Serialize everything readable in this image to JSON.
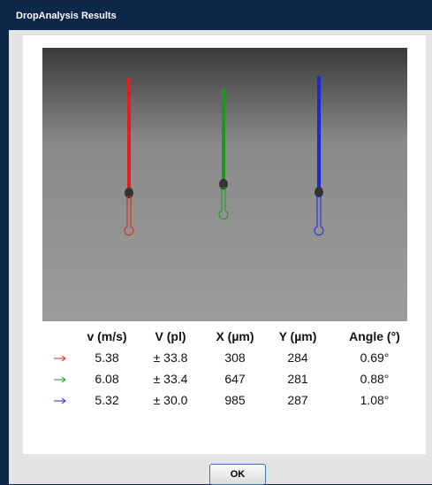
{
  "window": {
    "title": "DropAnalysis Results"
  },
  "table": {
    "headers": [
      "v (m/s)",
      "V (pl)",
      "X (µm)",
      "Y (µm)",
      "Angle (°)"
    ],
    "rows": [
      [
        "5.38",
        "± 33.8",
        "308",
        "284",
        "0.69°"
      ],
      [
        "6.08",
        "± 33.4",
        "647",
        "281",
        "0.88°"
      ],
      [
        "5.32",
        "± 30.0",
        "985",
        "287",
        "1.08°"
      ]
    ]
  },
  "buttons": {
    "ok": "OK"
  }
}
